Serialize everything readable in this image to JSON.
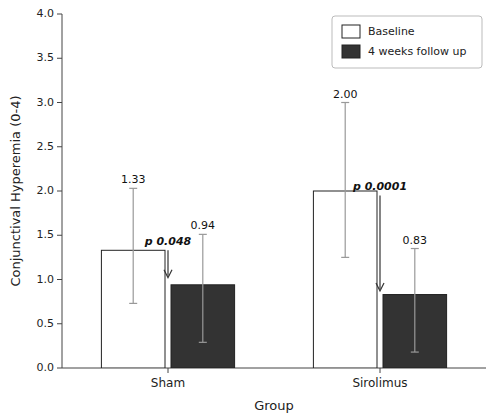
{
  "chart_data": {
    "type": "bar",
    "xlabel": "Group",
    "ylabel": "Conjunctival Hyperemia (0-4)",
    "categories": [
      "Sham",
      "Sirolimus"
    ],
    "series": [
      {
        "name": "Baseline",
        "color": "white",
        "values": [
          1.33,
          2.0
        ],
        "value_labels": [
          "1.33",
          "2.00"
        ],
        "errors_upper": [
          0.7,
          1.0
        ],
        "errors_lower": [
          0.6,
          0.75
        ]
      },
      {
        "name": "4 weeks follow up",
        "color": "#333333",
        "values": [
          0.94,
          0.83
        ],
        "value_labels": [
          "0.94",
          "0.83"
        ],
        "errors_upper": [
          0.57,
          0.52
        ],
        "errors_lower": [
          0.65,
          0.65
        ]
      }
    ],
    "annotations": [
      {
        "text": "p 0.048",
        "category": "Sham",
        "y_start": 1.33,
        "y_end": 1.02
      },
      {
        "text": "p 0.0001",
        "category": "Sirolimus",
        "y_start": 1.95,
        "y_end": 0.87
      }
    ],
    "ylim": [
      0.0,
      4.0
    ],
    "yticks": [
      {
        "value": 0.0,
        "label": "0.0"
      },
      0.5,
      {
        "value": 1.0,
        "label": "1.0"
      },
      1.5,
      {
        "value": 2.0,
        "label": "2.0"
      },
      2.5,
      {
        "value": 3.0,
        "label": "3.0"
      },
      3.5,
      {
        "value": 4.0,
        "label": "4.0"
      }
    ],
    "data_labels": true,
    "legend": "upper right",
    "grid": false
  }
}
